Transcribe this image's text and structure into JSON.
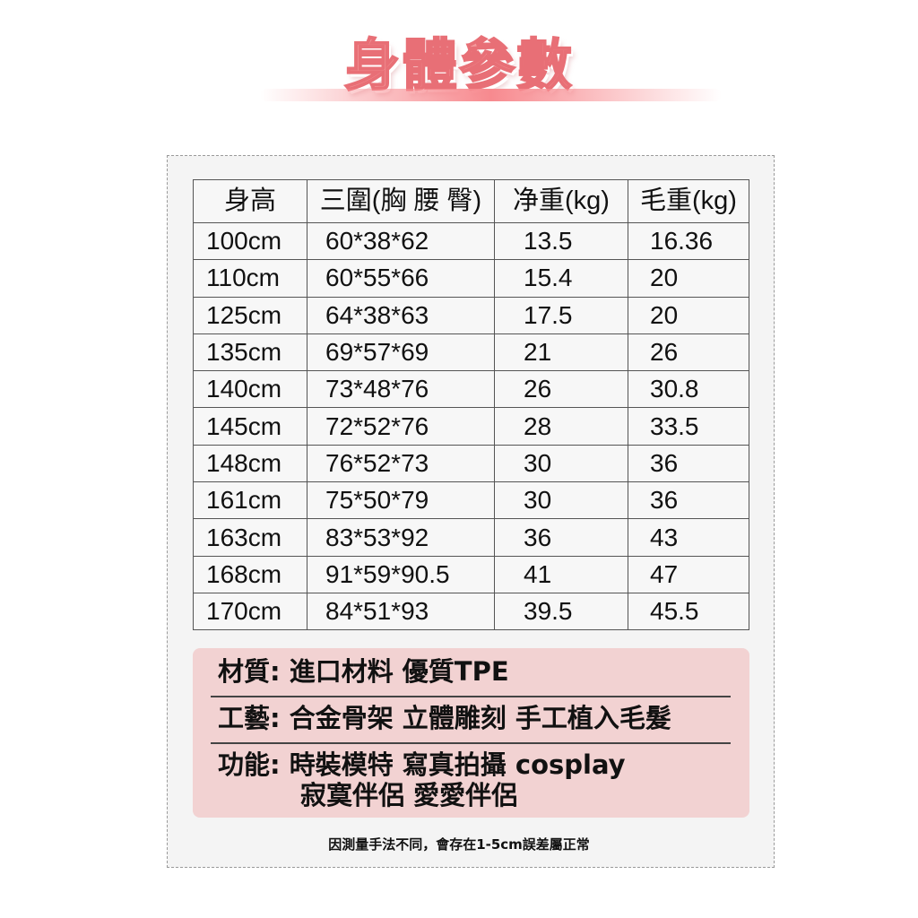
{
  "title": "身體參數",
  "table": {
    "headers": [
      "身高",
      "三圍(胸 腰 臀)",
      "净重(kg)",
      "毛重(kg)"
    ],
    "rows": [
      [
        "100cm",
        "60*38*62",
        "13.5",
        "16.36"
      ],
      [
        "110cm",
        "60*55*66",
        "15.4",
        "20"
      ],
      [
        "125cm",
        "64*38*63",
        "17.5",
        "20"
      ],
      [
        "135cm",
        "69*57*69",
        "21",
        "26"
      ],
      [
        "140cm",
        "73*48*76",
        "26",
        "30.8"
      ],
      [
        "145cm",
        "72*52*76",
        "28",
        "33.5"
      ],
      [
        "148cm",
        "76*52*73",
        "30",
        "36"
      ],
      [
        "161cm",
        "75*50*79",
        "30",
        "36"
      ],
      [
        "163cm",
        "83*53*92",
        "36",
        "43"
      ],
      [
        "168cm",
        "91*59*90.5",
        "41",
        "47"
      ],
      [
        "170cm",
        "84*51*93",
        "39.5",
        "45.5"
      ]
    ]
  },
  "info": {
    "material": "材質: 進口材料 優質TPE",
    "craft": "工藝: 合金骨架 立體雕刻  手工植入毛髮",
    "function_line1": "功能: 時裝模特 寫真拍攝 cosplay",
    "function_line2": "寂寞伴侶 愛愛伴侶"
  },
  "note": "因測量手法不同，會存在1-5cm誤差屬正常",
  "colors": {
    "title": "#f49a9c",
    "info_bg": "#f2d2d2",
    "panel_bg": "#f4f4f4"
  }
}
